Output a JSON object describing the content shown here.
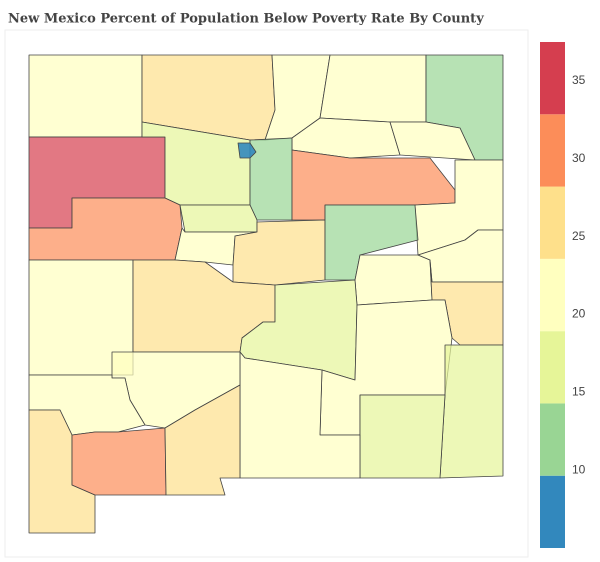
{
  "chart_data": {
    "type": "choropleth",
    "title": "New Mexico Percent of Population Below Poverty Rate By County",
    "values": [
      21,
      26,
      21,
      21,
      12,
      21,
      21,
      37,
      17,
      8,
      12,
      30,
      21,
      30,
      17,
      21,
      26,
      12,
      21,
      21,
      26,
      21,
      26,
      17,
      21,
      17,
      17,
      21,
      21,
      21,
      26,
      30,
      26
    ],
    "colorscale": [
      "#3288bd",
      "#99d594",
      "#e6f598",
      "#ffffbf",
      "#fee08b",
      "#fc8d59",
      "#d53e4f"
    ],
    "zlim": [
      5,
      37.5
    ],
    "zticks": [
      10,
      15,
      20,
      25,
      30,
      35
    ]
  }
}
